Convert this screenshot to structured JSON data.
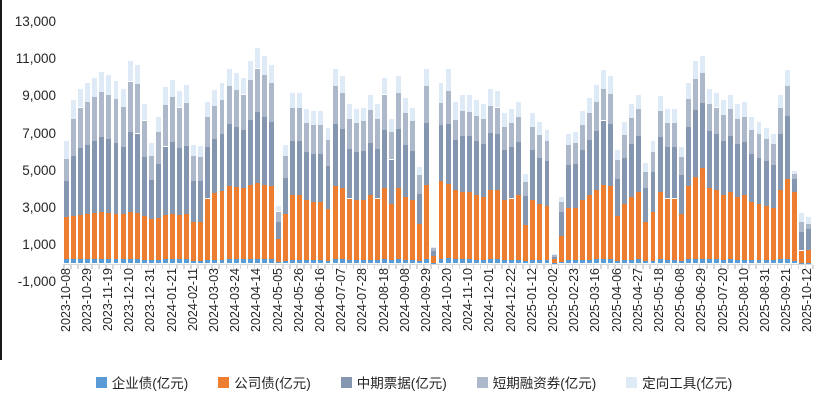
{
  "chart_data": {
    "type": "bar",
    "stacked": true,
    "title": "",
    "unit": "亿元",
    "legend_position": "bottom",
    "grid": false,
    "ylim": [
      -1000,
      13000
    ],
    "y_ticks": [
      {
        "v": -1000,
        "label": "-1,000"
      },
      {
        "v": 1000,
        "label": "1,000"
      },
      {
        "v": 3000,
        "label": "3,000"
      },
      {
        "v": 5000,
        "label": "5,000"
      },
      {
        "v": 7000,
        "label": "7,000"
      },
      {
        "v": 9000,
        "label": "9,000"
      },
      {
        "v": 11000,
        "label": "11,000"
      },
      {
        "v": 13000,
        "label": "13,000"
      }
    ],
    "x_tick_interval": 3,
    "categories": [
      "2023-10-08",
      "2023-10-15",
      "2023-10-22",
      "2023-10-29",
      "2023-11-05",
      "2023-11-12",
      "2023-11-19",
      "2023-11-26",
      "2023-12-03",
      "2023-12-10",
      "2023-12-17",
      "2023-12-24",
      "2023-12-31",
      "2024-01-07",
      "2024-01-14",
      "2024-01-21",
      "2024-01-28",
      "2024-02-04",
      "2024-02-11",
      "2024-02-18",
      "2024-02-25",
      "2024-03-03",
      "2024-03-10",
      "2024-03-17",
      "2024-03-24",
      "2024-03-31",
      "2024-04-07",
      "2024-04-14",
      "2024-04-21",
      "2024-04-28",
      "2024-05-05",
      "2024-05-12",
      "2024-05-19",
      "2024-05-26",
      "2024-06-02",
      "2024-06-09",
      "2024-06-16",
      "2024-06-23",
      "2024-06-30",
      "2024-07-07",
      "2024-07-14",
      "2024-07-21",
      "2024-07-28",
      "2024-08-04",
      "2024-08-11",
      "2024-08-18",
      "2024-08-25",
      "2024-09-01",
      "2024-09-08",
      "2024-09-15",
      "2024-09-22",
      "2024-09-29",
      "2024-10-06",
      "2024-10-13",
      "2024-10-20",
      "2024-10-27",
      "2024-11-03",
      "2024-11-10",
      "2024-11-17",
      "2024-11-24",
      "2024-12-01",
      "2024-12-08",
      "2024-12-15",
      "2024-12-22",
      "2024-12-29",
      "2025-01-05",
      "2025-01-12",
      "2025-01-19",
      "2025-01-26",
      "2025-02-02",
      "2025-02-09",
      "2025-02-16",
      "2025-02-23",
      "2025-03-02",
      "2025-03-09",
      "2025-03-16",
      "2025-03-23",
      "2025-03-30",
      "2025-04-06",
      "2025-04-13",
      "2025-04-20",
      "2025-04-27",
      "2025-05-04",
      "2025-05-11",
      "2025-05-18",
      "2025-05-25",
      "2025-06-01",
      "2025-06-08",
      "2025-06-15",
      "2025-06-22",
      "2025-06-29",
      "2025-07-06",
      "2025-07-13",
      "2025-07-20",
      "2025-07-27",
      "2025-08-03",
      "2025-08-10",
      "2025-08-17",
      "2025-08-24",
      "2025-08-31",
      "2025-09-07",
      "2025-09-14",
      "2025-09-21",
      "2025-09-28",
      "2025-10-05",
      "2025-10-12"
    ],
    "series": [
      {
        "name": "企业债(亿元)",
        "color": "#5B9BD5",
        "values": [
          250,
          250,
          250,
          250,
          250,
          250,
          250,
          250,
          250,
          250,
          250,
          200,
          200,
          200,
          250,
          250,
          250,
          250,
          150,
          150,
          200,
          200,
          200,
          250,
          250,
          250,
          250,
          250,
          250,
          250,
          100,
          150,
          200,
          200,
          200,
          200,
          200,
          150,
          250,
          250,
          200,
          200,
          200,
          200,
          200,
          250,
          200,
          250,
          200,
          200,
          150,
          250,
          30,
          250,
          300,
          250,
          250,
          250,
          200,
          200,
          250,
          250,
          200,
          200,
          200,
          150,
          200,
          200,
          200,
          20,
          100,
          200,
          200,
          200,
          200,
          250,
          250,
          250,
          150,
          200,
          200,
          250,
          150,
          150,
          250,
          200,
          200,
          150,
          250,
          250,
          250,
          250,
          250,
          200,
          250,
          200,
          200,
          200,
          200,
          200,
          200,
          250,
          250,
          150,
          50,
          50
        ]
      },
      {
        "name": "公司债(亿元)",
        "color": "#ED7D31",
        "values": [
          2250,
          2300,
          2350,
          2400,
          2450,
          2500,
          2450,
          2400,
          2400,
          2500,
          2450,
          2350,
          2200,
          2250,
          2350,
          2400,
          2350,
          2400,
          2100,
          2100,
          3300,
          3600,
          3700,
          3900,
          3850,
          3800,
          4000,
          4100,
          4000,
          3900,
          1200,
          2500,
          3500,
          3500,
          3200,
          3100,
          3100,
          2800,
          3900,
          3800,
          3300,
          3200,
          3200,
          3500,
          3300,
          3800,
          3000,
          3800,
          3400,
          3200,
          2000,
          4000,
          350,
          4200,
          4000,
          3700,
          3600,
          3600,
          3500,
          3400,
          3700,
          3700,
          3200,
          3300,
          3500,
          1900,
          3200,
          3000,
          2900,
          200,
          1400,
          2800,
          2800,
          3200,
          3500,
          3700,
          4000,
          3900,
          2400,
          3000,
          3400,
          3600,
          2100,
          2600,
          3600,
          3300,
          3300,
          2500,
          3900,
          4400,
          4900,
          3800,
          3700,
          3500,
          3600,
          3400,
          3500,
          3100,
          3000,
          2900,
          2800,
          3700,
          4300,
          3700,
          650,
          700
        ]
      },
      {
        "name": "中期票据(亿元)",
        "color": "#8496B0",
        "values": [
          1950,
          3250,
          3600,
          3750,
          3900,
          4050,
          4000,
          3850,
          3600,
          4350,
          4300,
          3200,
          2100,
          2900,
          3700,
          3900,
          3600,
          3700,
          2200,
          2200,
          2750,
          2900,
          3050,
          3350,
          3250,
          3150,
          3500,
          3800,
          3650,
          3450,
          950,
          1950,
          2900,
          2900,
          2600,
          2600,
          2600,
          2300,
          3350,
          3200,
          2650,
          2600,
          2650,
          2800,
          2650,
          3150,
          2400,
          3200,
          2800,
          2650,
          1600,
          3300,
          270,
          3000,
          3200,
          2700,
          3000,
          3000,
          2900,
          2850,
          3100,
          3050,
          2700,
          2750,
          2850,
          1600,
          2700,
          2500,
          2400,
          150,
          1250,
          2300,
          2350,
          2700,
          2950,
          3200,
          3450,
          3350,
          2000,
          2500,
          2850,
          3000,
          1800,
          2200,
          2950,
          2750,
          2750,
          2100,
          3200,
          3600,
          3500,
          3100,
          3000,
          2900,
          3000,
          2850,
          2850,
          2600,
          2500,
          2400,
          2300,
          3000,
          3400,
          700,
          1000,
          1100
        ]
      },
      {
        "name": "短期融资券(亿元)",
        "color": "#ADB9CA",
        "values": [
          1200,
          2000,
          2200,
          2300,
          2350,
          2450,
          2400,
          2350,
          2200,
          2700,
          2650,
          1950,
          1300,
          1750,
          2250,
          2400,
          2200,
          2300,
          1350,
          1300,
          1650,
          1800,
          1850,
          2050,
          2000,
          1900,
          2150,
          2350,
          2250,
          2100,
          550,
          1200,
          1750,
          1750,
          1550,
          1550,
          1550,
          1400,
          2050,
          1950,
          1650,
          1550,
          1600,
          1750,
          1650,
          1900,
          1500,
          1950,
          1700,
          1600,
          1000,
          2000,
          170,
          1200,
          1800,
          1100,
          1350,
          1300,
          1350,
          1350,
          1450,
          1400,
          1250,
          1300,
          1350,
          750,
          1250,
          1200,
          1100,
          90,
          550,
          1100,
          1150,
          1350,
          1450,
          1550,
          1700,
          1650,
          1000,
          1200,
          1400,
          1450,
          900,
          1050,
          1400,
          1300,
          1300,
          1000,
          1500,
          1700,
          1600,
          1450,
          1450,
          1400,
          1450,
          1350,
          1350,
          1300,
          1250,
          1200,
          1150,
          1400,
          1600,
          250,
          550,
          300
        ]
      },
      {
        "name": "定向工具(亿元)",
        "color": "#DEEAF6",
        "values": [
          950,
          1000,
          1000,
          1000,
          1050,
          1050,
          1050,
          1000,
          950,
          1100,
          1050,
          900,
          700,
          800,
          950,
          950,
          900,
          950,
          600,
          600,
          800,
          850,
          900,
          950,
          900,
          900,
          1000,
          1100,
          1050,
          1000,
          300,
          600,
          850,
          850,
          750,
          750,
          750,
          650,
          950,
          900,
          800,
          750,
          750,
          850,
          800,
          900,
          700,
          900,
          800,
          750,
          450,
          950,
          80,
          1050,
          1200,
          950,
          900,
          950,
          850,
          800,
          900,
          900,
          750,
          750,
          800,
          400,
          750,
          700,
          600,
          40,
          300,
          600,
          600,
          750,
          800,
          900,
          1000,
          950,
          550,
          700,
          750,
          800,
          450,
          600,
          800,
          750,
          750,
          550,
          850,
          950,
          950,
          800,
          800,
          800,
          800,
          800,
          800,
          700,
          650,
          600,
          550,
          750,
          850,
          200,
          450,
          350
        ]
      }
    ],
    "axis_color": "#d9d9d9",
    "label_color": "#262626"
  }
}
